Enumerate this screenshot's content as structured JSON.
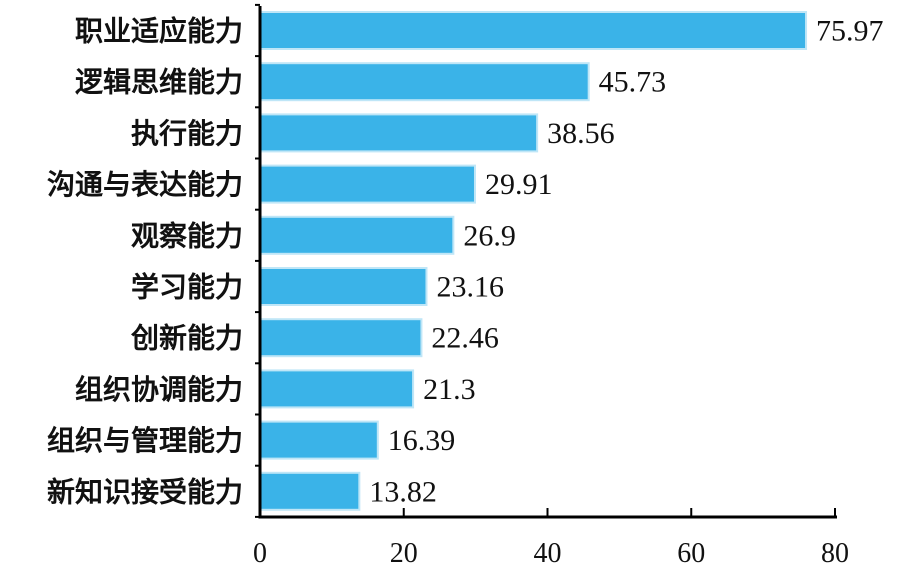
{
  "chart_data": {
    "type": "bar",
    "orientation": "horizontal",
    "categories": [
      "职业适应能力",
      "逻辑思维能力",
      "执行能力",
      "沟通与表达能力",
      "观察能力",
      "学习能力",
      "创新能力",
      "组织协调能力",
      "组织与管理能力",
      "新知识接受能力"
    ],
    "values": [
      75.97,
      45.73,
      38.56,
      29.91,
      26.9,
      23.16,
      22.46,
      21.3,
      16.39,
      13.82
    ],
    "value_labels": [
      "75.97",
      "45.73",
      "38.56",
      "29.91",
      "26.9",
      "23.16",
      "22.46",
      "21.3",
      "16.39",
      "13.82"
    ],
    "title": "",
    "xlabel": "",
    "ylabel": "",
    "xlim": [
      0,
      80
    ],
    "xticks": [
      0,
      20,
      40,
      60,
      80
    ],
    "grid": false,
    "bar_color": "#3ab3e8",
    "bar_edge_color": "#bfe6f7"
  }
}
